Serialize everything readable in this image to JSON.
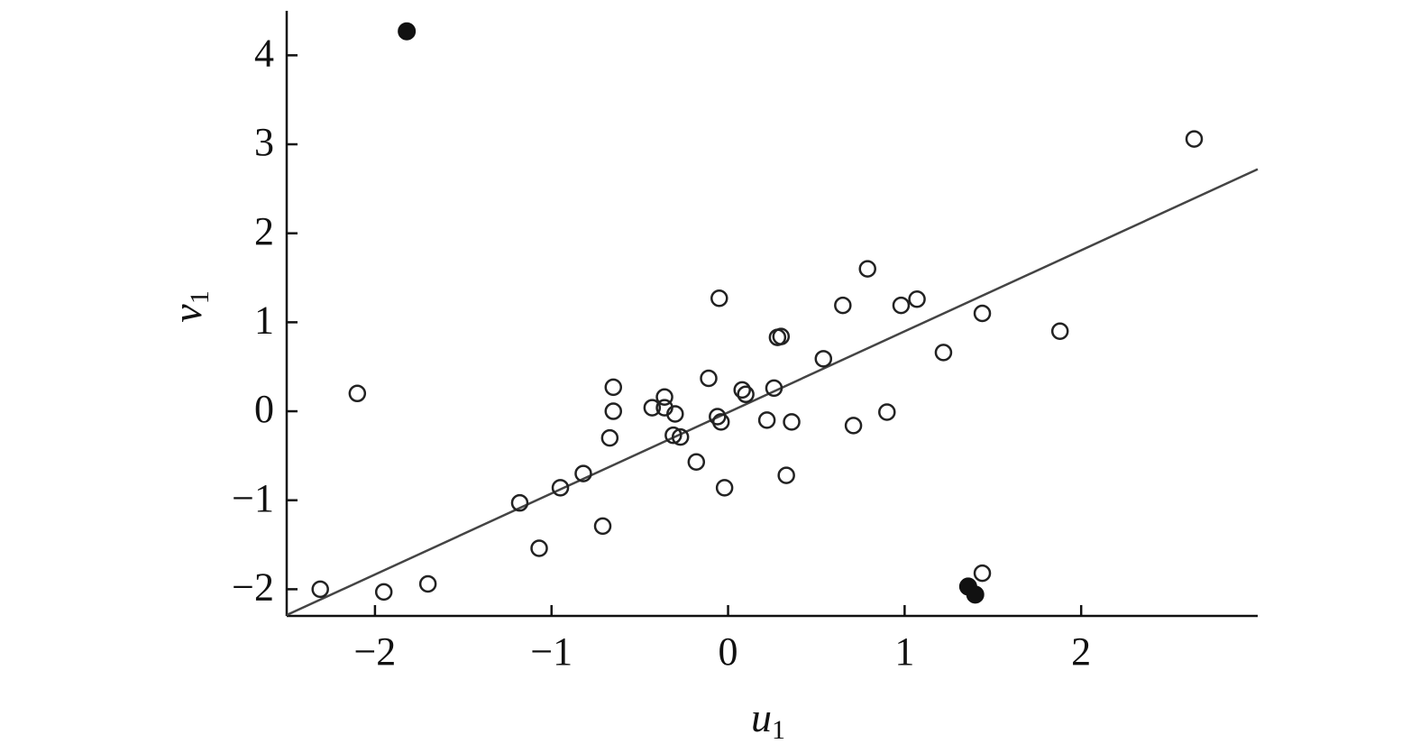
{
  "chart_data": {
    "type": "scatter",
    "xlabel": {
      "main": "u",
      "sub": "1"
    },
    "ylabel": {
      "main": "v",
      "sub": "1"
    },
    "xlim": [
      -2.5,
      3.0
    ],
    "ylim": [
      -2.3,
      4.5
    ],
    "xticks": [
      {
        "value": -2,
        "label": "−2"
      },
      {
        "value": -1,
        "label": "−1"
      },
      0,
      1,
      2
    ],
    "yticks": [
      {
        "value": -2,
        "label": "−2"
      },
      {
        "value": -1,
        "label": "−1"
      },
      0,
      1,
      2,
      3,
      4
    ],
    "series": [
      {
        "marker": "open",
        "color": "#222222",
        "x": [
          -2.31,
          -1.95,
          -1.7,
          -2.1,
          -1.18,
          -1.07,
          -0.95,
          -0.82,
          -0.71,
          -0.67,
          -0.65,
          -0.65,
          -0.43,
          -0.36,
          -0.36,
          -0.3,
          -0.31,
          -0.27,
          -0.18,
          -0.11,
          -0.05,
          -0.06,
          -0.04,
          -0.02,
          0.08,
          0.1,
          0.22,
          0.26,
          0.28,
          0.3,
          0.33,
          0.36,
          0.54,
          0.65,
          0.71,
          0.79,
          0.9,
          0.98,
          1.07,
          1.22,
          1.44,
          1.44,
          1.88,
          2.64
        ],
        "values": [
          -2.0,
          -2.03,
          -1.94,
          0.2,
          -1.03,
          -1.54,
          -0.86,
          -0.7,
          -1.29,
          -0.3,
          0.27,
          0.0,
          0.04,
          0.16,
          0.04,
          -0.03,
          -0.27,
          -0.29,
          -0.57,
          0.37,
          1.27,
          -0.06,
          -0.12,
          -0.86,
          0.24,
          0.19,
          -0.1,
          0.26,
          0.83,
          0.84,
          -0.72,
          -0.12,
          0.59,
          1.19,
          -0.16,
          1.6,
          -0.01,
          1.19,
          1.26,
          0.66,
          1.1,
          -1.82,
          0.9,
          3.06
        ]
      },
      {
        "marker": "filled",
        "color": "#111111",
        "x": [
          -1.82,
          1.36,
          1.4
        ],
        "values": [
          4.27,
          -1.97,
          -2.06
        ]
      }
    ],
    "fit_line": {
      "color": "#444444",
      "x": [
        -2.5,
        3.0
      ],
      "values": [
        -2.29,
        2.72
      ]
    }
  }
}
